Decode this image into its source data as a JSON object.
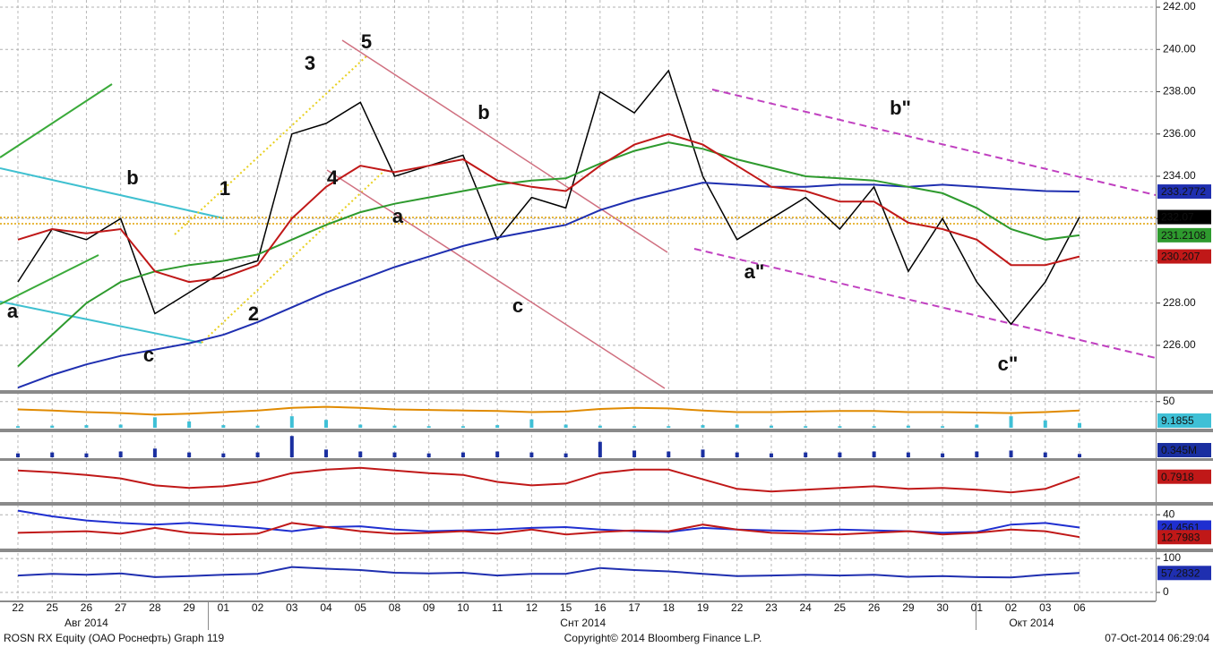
{
  "chart_data": [
    {
      "type": "line",
      "categories": [
        "22",
        "25",
        "26",
        "27",
        "28",
        "29",
        "01",
        "02",
        "03",
        "04",
        "05",
        "08",
        "09",
        "10",
        "11",
        "12",
        "15",
        "16",
        "17",
        "18",
        "19",
        "22",
        "23",
        "24",
        "25",
        "26",
        "29",
        "30",
        "01",
        "02",
        "03",
        "06"
      ],
      "months": [
        "Авг 2014",
        "Снт 2014",
        "Окт 2014"
      ],
      "ylim": [
        223.88,
        242.34
      ],
      "yticks": [
        {
          "value": 226,
          "label": "226.00"
        },
        {
          "value": 228,
          "label": "228.00"
        },
        {
          "value": 230,
          "label": "230.00"
        },
        {
          "value": 232,
          "label": "232.00"
        },
        {
          "value": 234,
          "label": "234.00"
        },
        {
          "value": 236,
          "label": "236.00"
        },
        {
          "value": 238,
          "label": "238.00"
        },
        {
          "value": 240,
          "label": "240.00"
        },
        {
          "value": 242,
          "label": "242.00"
        }
      ],
      "grid": true,
      "series": [
        {
          "color": "#000000",
          "tag": true,
          "values": [
            229,
            231.5,
            231,
            232,
            227.5,
            228.5,
            229.5,
            230,
            236,
            236.5,
            237.5,
            234,
            234.5,
            235,
            231,
            233,
            232.5,
            238,
            237,
            239,
            234,
            231,
            232,
            233,
            231.5,
            233.5,
            229.5,
            232,
            229,
            227,
            229,
            232.07
          ]
        },
        {
          "color": "#1f2fb0",
          "tag": true,
          "values": [
            224,
            224.6,
            225.1,
            225.5,
            225.8,
            226.1,
            226.5,
            227.1,
            227.8,
            228.5,
            229.1,
            229.7,
            230.2,
            230.7,
            231.1,
            231.4,
            231.7,
            232.4,
            232.9,
            233.3,
            233.7,
            233.6,
            233.5,
            233.5,
            233.6,
            233.6,
            233.5,
            233.6,
            233.5,
            233.4,
            233.3,
            233.2772
          ]
        },
        {
          "color": "#2e9a2e",
          "tag": true,
          "values": [
            225,
            226.5,
            228,
            229,
            229.5,
            229.8,
            230,
            230.3,
            231,
            231.7,
            232.3,
            232.7,
            233,
            233.3,
            233.6,
            233.8,
            233.9,
            234.6,
            235.2,
            235.6,
            235.3,
            234.8,
            234.4,
            234,
            233.9,
            233.8,
            233.5,
            233.2,
            232.5,
            231.5,
            231,
            231.2108
          ]
        },
        {
          "color": "#c01818",
          "tag": true,
          "values": [
            231,
            231.5,
            231.3,
            231.5,
            229.5,
            229,
            229.2,
            229.8,
            232,
            233.5,
            234.5,
            234.2,
            234.5,
            234.8,
            233.8,
            233.5,
            233.3,
            234.5,
            235.5,
            236,
            235.5,
            234.5,
            233.5,
            233.3,
            232.8,
            232.8,
            231.8,
            231.5,
            231,
            229.8,
            229.8,
            230.207
          ]
        }
      ],
      "annotations": [
        {
          "text": "a",
          "color": "#e0201a"
        },
        {
          "text": "b",
          "color": "#e0201a"
        },
        {
          "text": "c",
          "color": "#e0201a"
        },
        {
          "text": "1",
          "color": "#4cc24c"
        },
        {
          "text": "2",
          "color": "#4cc24c"
        },
        {
          "text": "3",
          "color": "#4cc24c"
        },
        {
          "text": "4",
          "color": "#4cc24c"
        },
        {
          "text": "5",
          "color": "#4cc24c"
        },
        {
          "text": "a",
          "color": "#e0201a"
        },
        {
          "text": "b",
          "color": "#e0201a"
        },
        {
          "text": "c",
          "color": "#e0201a"
        },
        {
          "text": "a\"",
          "color": "#e0201a"
        },
        {
          "text": "b\"",
          "color": "#e0201a"
        },
        {
          "text": "c\"",
          "color": "#e0201a"
        }
      ]
    },
    {
      "type": "line",
      "ylim": [
        0,
        65
      ],
      "yticks": [
        50
      ],
      "series": [
        {
          "type": "bar",
          "color": "#3fc0d6",
          "tag": true,
          "values": [
            3,
            4,
            5,
            6,
            20,
            12,
            5,
            4,
            22,
            15,
            6,
            4,
            3,
            3,
            5,
            16,
            6,
            4,
            3,
            3,
            5,
            6,
            4,
            3,
            3,
            3,
            4,
            3,
            6,
            22,
            14,
            9.1855
          ]
        },
        {
          "type": "line",
          "color": "#e08a00",
          "tag": false,
          "values": [
            35,
            33,
            30,
            28,
            25,
            27,
            30,
            33,
            38,
            40,
            38,
            35,
            34,
            33,
            32,
            30,
            31,
            36,
            38,
            37,
            33,
            30,
            30,
            31,
            32,
            32,
            30,
            30,
            29,
            28,
            30,
            33
          ]
        }
      ]
    },
    {
      "type": "bar",
      "ylim": [
        0,
        2.5
      ],
      "yticks": [],
      "series": [
        {
          "type": "bar",
          "color": "#1a2fa0",
          "tag": true,
          "values": [
            0.4,
            0.5,
            0.4,
            0.6,
            0.9,
            0.5,
            0.4,
            0.5,
            2.2,
            0.8,
            0.6,
            0.5,
            0.4,
            0.5,
            0.6,
            0.5,
            0.4,
            1.6,
            0.7,
            0.6,
            0.8,
            0.5,
            0.4,
            0.5,
            0.5,
            0.6,
            0.5,
            0.4,
            0.6,
            0.7,
            0.5,
            0.345
          ],
          "value_labels": [
            null,
            null,
            null,
            null,
            null,
            null,
            null,
            null,
            null,
            null,
            null,
            null,
            null,
            null,
            null,
            null,
            null,
            null,
            null,
            null,
            null,
            null,
            null,
            null,
            null,
            null,
            null,
            null,
            null,
            null,
            null,
            "0.345M"
          ]
        }
      ]
    },
    {
      "type": "line",
      "ylim": [
        -2,
        2.5
      ],
      "yticks": [],
      "series": [
        {
          "type": "line",
          "color": "#c01818",
          "tag": true,
          "values": [
            1.5,
            1.3,
            1.0,
            0.6,
            -0.2,
            -0.5,
            -0.3,
            0.2,
            1.2,
            1.6,
            1.8,
            1.5,
            1.2,
            1.0,
            0.2,
            -0.2,
            0,
            1.2,
            1.6,
            1.6,
            0.5,
            -0.6,
            -0.9,
            -0.7,
            -0.5,
            -0.3,
            -0.6,
            -0.5,
            -0.7,
            -1.0,
            -0.6,
            0.7918
          ]
        }
      ]
    },
    {
      "type": "line",
      "ylim": [
        0,
        50
      ],
      "yticks": [
        40
      ],
      "series": [
        {
          "type": "line",
          "color": "#1f2fd0",
          "tag": true,
          "values": [
            45,
            38,
            33,
            30,
            28,
            30,
            27,
            24,
            20,
            25,
            26,
            22,
            20,
            21,
            22,
            24,
            25,
            22,
            20,
            19,
            24,
            22,
            21,
            20,
            22,
            21,
            20,
            18,
            19,
            28,
            30,
            24.4561
          ]
        },
        {
          "type": "line",
          "color": "#c01818",
          "tag": true,
          "values": [
            18,
            19,
            20,
            17,
            24,
            18,
            16,
            17,
            30,
            25,
            20,
            17,
            18,
            20,
            17,
            22,
            16,
            19,
            21,
            20,
            28,
            22,
            18,
            17,
            16,
            18,
            20,
            16,
            18,
            22,
            20,
            12.7983
          ]
        }
      ]
    },
    {
      "type": "line",
      "ylim": [
        -21,
        116
      ],
      "yticks": [
        100,
        0
      ],
      "series": [
        {
          "type": "line",
          "color": "#1f2fb0",
          "tag": true,
          "values": [
            50,
            55,
            52,
            56,
            45,
            48,
            52,
            55,
            75,
            70,
            66,
            58,
            56,
            58,
            50,
            55,
            55,
            72,
            66,
            62,
            55,
            48,
            50,
            52,
            50,
            52,
            46,
            48,
            45,
            44,
            52,
            57.2832
          ]
        }
      ]
    }
  ],
  "footer": {
    "left": "ROSN RX Equity (ОАО Роснефть) Graph 119",
    "center": "Copyright© 2014 Bloomberg Finance L.P.",
    "right": "07-Oct-2014 06:29:04"
  }
}
